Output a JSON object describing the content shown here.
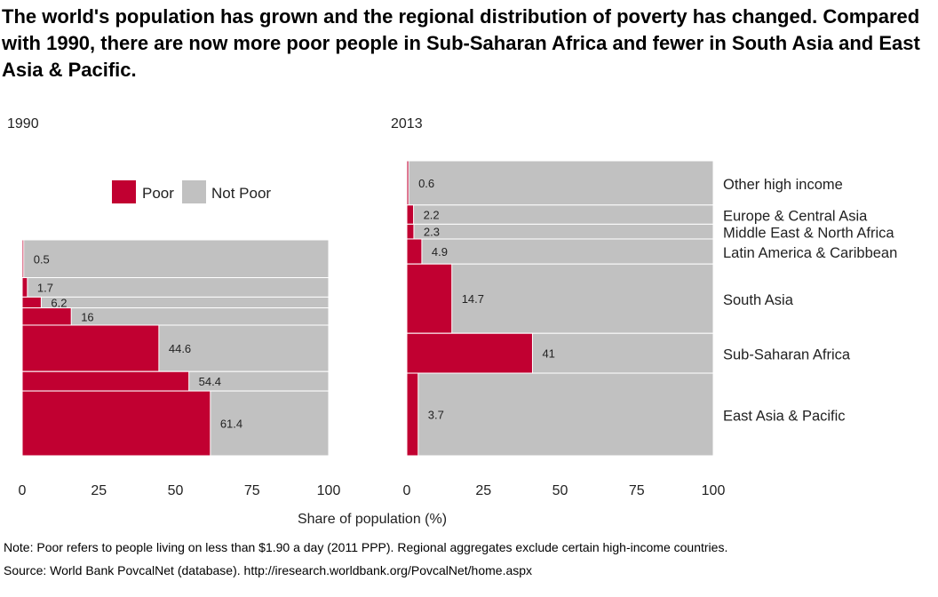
{
  "title": "The world's population has grown and the regional distribution of poverty has changed. Compared with 1990, there are now more poor people in Sub-Saharan Africa and fewer in South Asia and East Asia & Pacific.",
  "note": "Note: Poor refers to people living on less than $1.90 a day (2011 PPP). Regional aggregates exclude certain high-income countries.",
  "source": "Source: World Bank PovcalNet (database). http://iresearch.worldbank.org/PovcalNet/home.aspx",
  "chart_data": [
    {
      "type": "bar",
      "panel_label": "1990",
      "xlabel": "Share of population (%)",
      "xlim": [
        0,
        100
      ],
      "xticks": [
        0,
        25,
        50,
        75,
        100
      ],
      "legend": {
        "placement": "top-left",
        "entries": [
          "Poor",
          "Not Poor"
        ]
      },
      "colors": {
        "Poor": "#c10031",
        "Not Poor": "#c1c1c1"
      },
      "categories": [
        "Other high income",
        "Europe & Central Asia",
        "Middle East & North Africa",
        "Latin America & Caribbean",
        "South Asia",
        "Sub-Saharan Africa",
        "East Asia & Pacific"
      ],
      "poor_share": [
        0.5,
        1.7,
        6.2,
        16,
        44.6,
        54.4,
        61.4
      ],
      "population_share": [
        17.5,
        9.0,
        5.0,
        8.0,
        21.5,
        9.0,
        30.0
      ],
      "data_labels": [
        "0.5",
        "1.7",
        "6.2",
        "16",
        "44.6",
        "54.4",
        "61.4"
      ]
    },
    {
      "type": "bar",
      "panel_label": "2013",
      "xlabel": "Share of population (%)",
      "xlim": [
        0,
        100
      ],
      "xticks": [
        0,
        25,
        50,
        75,
        100
      ],
      "colors": {
        "Poor": "#c10031",
        "Not Poor": "#c1c1c1"
      },
      "categories": [
        "Other high income",
        "Europe & Central Asia",
        "Middle East & North Africa",
        "Latin America & Caribbean",
        "South Asia",
        "Sub-Saharan Africa",
        "East Asia & Pacific"
      ],
      "poor_share": [
        0.6,
        2.2,
        2.3,
        4.9,
        14.7,
        41,
        3.7
      ],
      "population_share": [
        15.0,
        6.5,
        5.0,
        8.5,
        23.5,
        13.5,
        28.0
      ],
      "data_labels": [
        "0.6",
        "2.2",
        "2.3",
        "4.9",
        "14.7",
        "41",
        "3.7"
      ]
    }
  ]
}
